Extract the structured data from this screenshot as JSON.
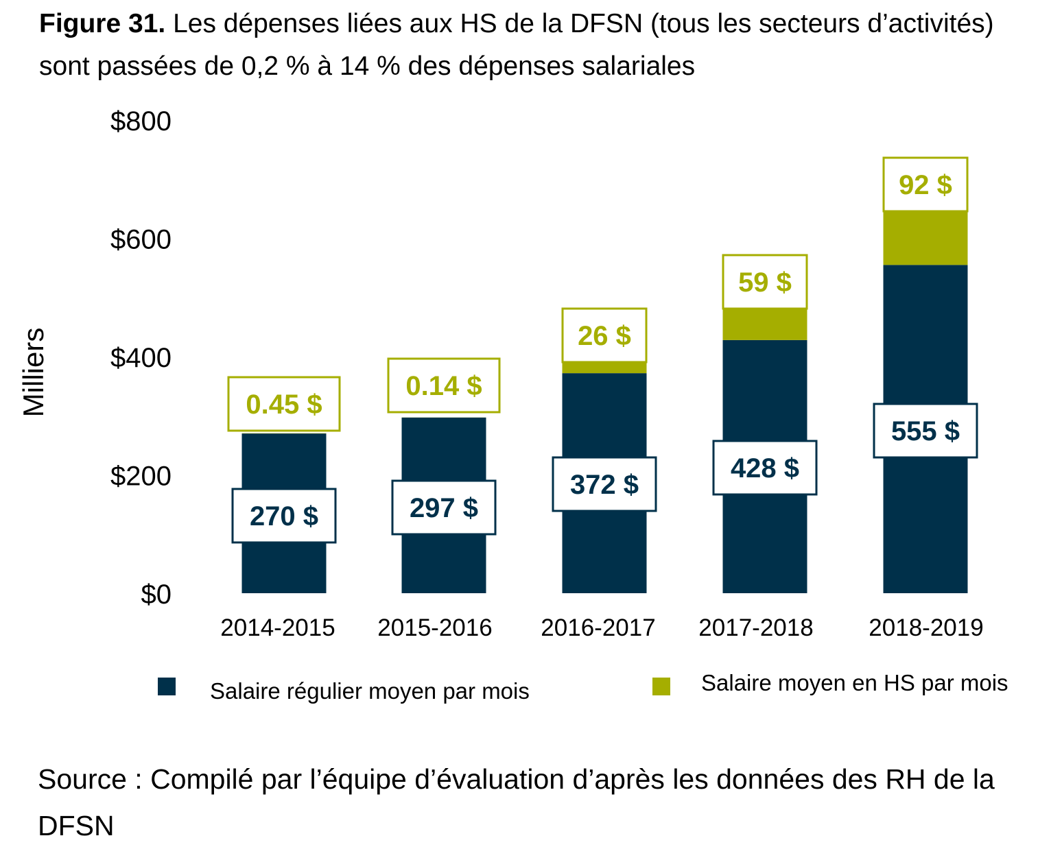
{
  "figure": {
    "number": "Figure 31.",
    "title": " Les dépenses liées aux HS de la DFSN (tous les secteurs d’activités) sont passées de 0,2 % à 14 % des dépenses salariales"
  },
  "source": "Source : Compilé par l’équipe d’évaluation d’après les données des RH de la DFSN",
  "colors": {
    "regular": "#00304a",
    "overtime": "#a5ae00"
  },
  "chart_data": {
    "type": "bar",
    "stacked": true,
    "title": "Figure 31. Les dépenses liées aux HS de la DFSN (tous les secteurs d’activités) sont passées de 0,2 % à 14 % des dépenses salariales",
    "ylabel": "Milliers",
    "xlabel": "",
    "ylim": [
      0,
      800
    ],
    "yticks": [
      0,
      200,
      400,
      600,
      800
    ],
    "ytick_labels": [
      "$0",
      "$200",
      "$400",
      "$600",
      "$800"
    ],
    "categories": [
      "2014-2015",
      "2015-2016",
      "2016-2017",
      "2017-2018",
      "2018-2019"
    ],
    "series": [
      {
        "name": "Salaire régulier moyen par mois",
        "values": [
          270,
          297,
          372,
          428,
          555
        ],
        "labels": [
          "270 $",
          "297 $",
          "372 $",
          "428 $",
          "555 $"
        ]
      },
      {
        "name": "Salaire moyen en HS par mois",
        "values": [
          0.45,
          0.14,
          26,
          59,
          92
        ],
        "labels": [
          "0.45 $",
          "0.14 $",
          "26 $",
          "59 $",
          "92 $"
        ]
      }
    ],
    "legend": "bottom",
    "grid": false
  }
}
